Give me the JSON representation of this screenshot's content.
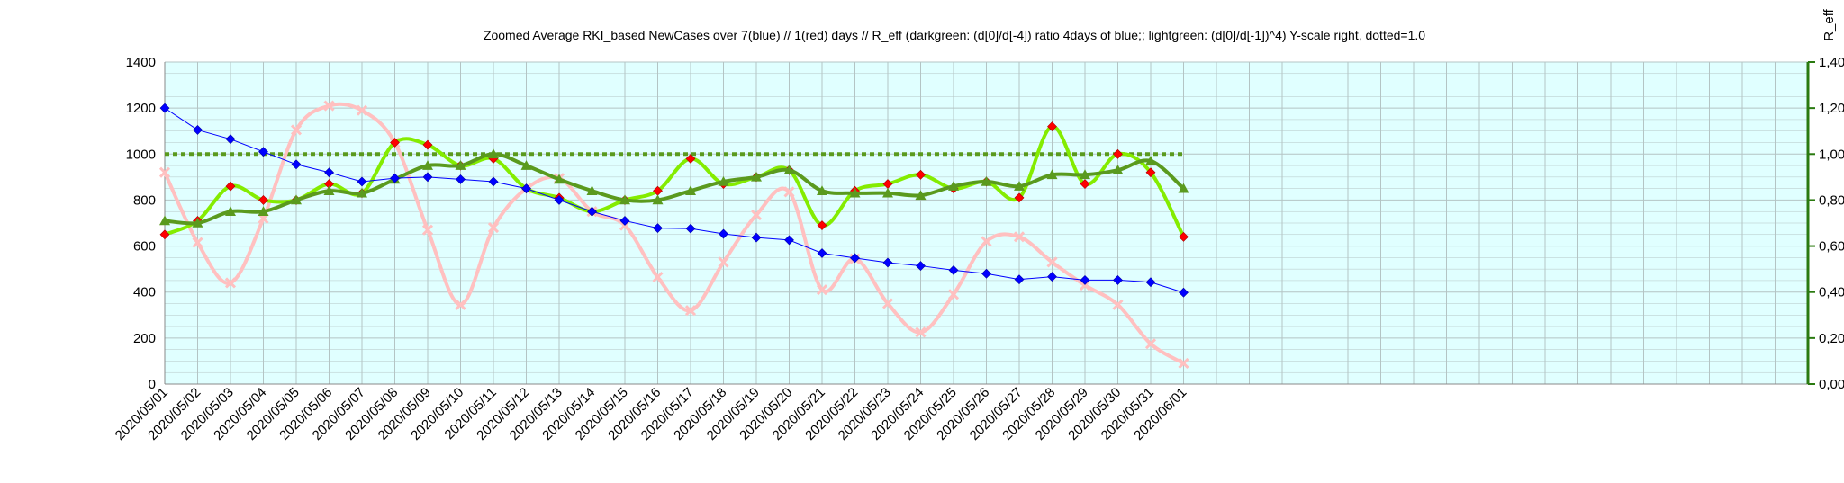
{
  "chart_data": {
    "type": "line",
    "title": "Zoomed Average RKI_based NewCases over 7(blue) // 1(red) days //  R_eff (darkgreen: (d[0]/d[-4]) ratio 4days of blue;; lightgreen: (d[0]/d[-1])^4) Y-scale right, dotted=1.0",
    "y2label": "R_eff",
    "categories": [
      "2020/05/01",
      "2020/05/02",
      "2020/05/03",
      "2020/05/04",
      "2020/05/05",
      "2020/05/06",
      "2020/05/07",
      "2020/05/08",
      "2020/05/09",
      "2020/05/10",
      "2020/05/11",
      "2020/05/12",
      "2020/05/13",
      "2020/05/14",
      "2020/05/15",
      "2020/05/16",
      "2020/05/17",
      "2020/05/18",
      "2020/05/19",
      "2020/05/20",
      "2020/05/21",
      "2020/05/22",
      "2020/05/23",
      "2020/05/24",
      "2020/05/25",
      "2020/05/26",
      "2020/05/27",
      "2020/05/28",
      "2020/05/29",
      "2020/05/30",
      "2020/05/31",
      "2020/06/01"
    ],
    "total_slots": 50,
    "ylim": [
      0,
      1400
    ],
    "yticks": [
      0,
      200,
      400,
      600,
      800,
      1000,
      1200,
      1400
    ],
    "ylim_right": [
      0,
      1.4
    ],
    "yticks_right": [
      "0,00",
      "0,20",
      "0,40",
      "0,60",
      "0,80",
      "1,00",
      "1,20",
      "1,40"
    ],
    "grid": true,
    "colors": {
      "plot_bg": "#e0ffff",
      "grid": "#b4c4c4",
      "blue": "#0000ff",
      "red_line": "#ffc0c0",
      "red_marker": "#ff0000",
      "darkgreen": "#5a9a1e",
      "lightgreen": "#84ec00",
      "right_axis": "#2a7a10",
      "dotted": "#5a9a1e"
    },
    "series": [
      {
        "id": "blue",
        "axis": "left",
        "values": [
          1200,
          1105,
          1065,
          1010,
          955,
          920,
          880,
          895,
          900,
          890,
          880,
          850,
          800,
          750,
          710,
          678,
          676,
          653,
          637,
          626,
          569,
          548,
          528,
          514,
          495,
          480,
          455,
          467,
          452,
          452,
          443,
          398
        ]
      },
      {
        "id": "red",
        "axis": "left",
        "values": [
          920,
          615,
          440,
          720,
          1105,
          1210,
          1190,
          1050,
          670,
          345,
          680,
          850,
          895,
          750,
          690,
          465,
          320,
          530,
          735,
          835,
          410,
          545,
          350,
          225,
          390,
          620,
          640,
          530,
          430,
          345,
          175,
          90
        ]
      },
      {
        "id": "darkgreen",
        "axis": "right",
        "values": [
          0.71,
          0.7,
          0.75,
          0.75,
          0.8,
          0.84,
          0.83,
          0.89,
          0.95,
          0.95,
          1.0,
          0.95,
          0.89,
          0.84,
          0.8,
          0.8,
          0.84,
          0.88,
          0.9,
          0.93,
          0.84,
          0.83,
          0.83,
          0.82,
          0.86,
          0.88,
          0.86,
          0.91,
          0.91,
          0.93,
          0.97,
          0.85
        ]
      },
      {
        "id": "lightgreen",
        "axis": "right",
        "values": [
          0.65,
          0.71,
          0.86,
          0.8,
          0.8,
          0.87,
          0.83,
          1.05,
          1.04,
          0.95,
          0.98,
          0.85,
          0.81,
          0.75,
          0.8,
          0.84,
          0.98,
          0.87,
          0.9,
          0.93,
          0.69,
          0.84,
          0.87,
          0.91,
          0.85,
          0.88,
          0.81,
          1.12,
          0.87,
          1.0,
          0.92,
          0.64
        ]
      }
    ],
    "reference_line_right": 1.0
  }
}
